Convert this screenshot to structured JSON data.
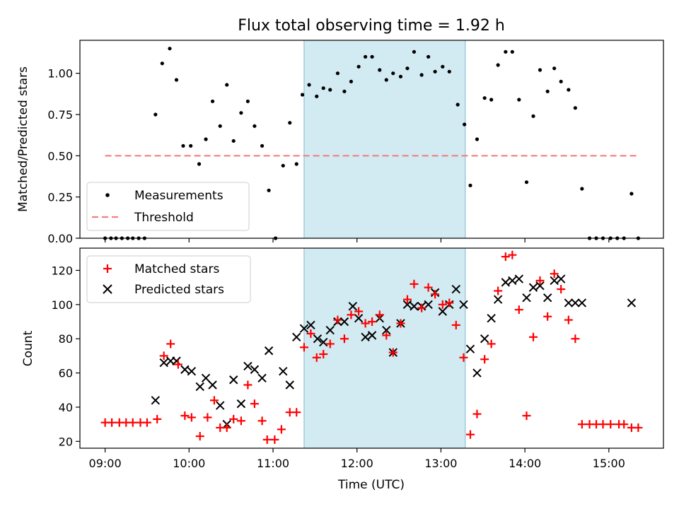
{
  "figure": {
    "title": "Flux total observing time = 1.92 h",
    "xlabel": "Time (UTC)",
    "x_ticks": [
      "09:00",
      "10:00",
      "11:00",
      "12:00",
      "13:00",
      "14:00",
      "15:00"
    ],
    "x_tick_hours": [
      9,
      10,
      11,
      12,
      13,
      14,
      15
    ],
    "xlim_hours": [
      8.7,
      15.65
    ],
    "shaded_span_hours": [
      11.37,
      13.29
    ],
    "shade_color": "#add8e6"
  },
  "chart_data": [
    {
      "type": "scatter",
      "ylabel": "Matched/Predicted stars",
      "ylim": [
        0,
        1.2
      ],
      "y_ticks": [
        "0.00",
        "0.25",
        "0.50",
        "0.75",
        "1.00"
      ],
      "y_tick_values": [
        0,
        0.25,
        0.5,
        0.75,
        1.0
      ],
      "legend_position": "lower-left",
      "grid": false,
      "series": [
        {
          "name": "Measurements",
          "marker": "dot",
          "color": "#000000",
          "points": [
            [
              9.0,
              0
            ],
            [
              9.07,
              0
            ],
            [
              9.13,
              0
            ],
            [
              9.2,
              0
            ],
            [
              9.27,
              0
            ],
            [
              9.33,
              0
            ],
            [
              9.4,
              0
            ],
            [
              9.47,
              0
            ],
            [
              9.6,
              0.75
            ],
            [
              9.68,
              1.06
            ],
            [
              9.77,
              1.15
            ],
            [
              9.85,
              0.96
            ],
            [
              9.93,
              0.56
            ],
            [
              10.02,
              0.56
            ],
            [
              10.12,
              0.45
            ],
            [
              10.2,
              0.6
            ],
            [
              10.28,
              0.83
            ],
            [
              10.37,
              0.68
            ],
            [
              10.45,
              0.93
            ],
            [
              10.53,
              0.59
            ],
            [
              10.62,
              0.76
            ],
            [
              10.7,
              0.83
            ],
            [
              10.78,
              0.68
            ],
            [
              10.87,
              0.56
            ],
            [
              10.95,
              0.29
            ],
            [
              11.03,
              0
            ],
            [
              11.12,
              0.44
            ],
            [
              11.2,
              0.7
            ],
            [
              11.28,
              0.45
            ],
            [
              11.35,
              0.87
            ],
            [
              11.43,
              0.93
            ],
            [
              11.52,
              0.86
            ],
            [
              11.6,
              0.91
            ],
            [
              11.68,
              0.9
            ],
            [
              11.77,
              1.0
            ],
            [
              11.85,
              0.89
            ],
            [
              11.93,
              0.95
            ],
            [
              12.02,
              1.04
            ],
            [
              12.1,
              1.1
            ],
            [
              12.18,
              1.1
            ],
            [
              12.27,
              1.02
            ],
            [
              12.35,
              0.96
            ],
            [
              12.43,
              1.0
            ],
            [
              12.52,
              0.98
            ],
            [
              12.6,
              1.03
            ],
            [
              12.68,
              1.13
            ],
            [
              12.77,
              0.99
            ],
            [
              12.85,
              1.1
            ],
            [
              12.93,
              1.01
            ],
            [
              13.02,
              1.04
            ],
            [
              13.1,
              1.01
            ],
            [
              13.2,
              0.81
            ],
            [
              13.28,
              0.69
            ],
            [
              13.35,
              0.32
            ],
            [
              13.43,
              0.6
            ],
            [
              13.52,
              0.85
            ],
            [
              13.6,
              0.84
            ],
            [
              13.68,
              1.05
            ],
            [
              13.77,
              1.13
            ],
            [
              13.85,
              1.13
            ],
            [
              13.93,
              0.84
            ],
            [
              14.02,
              0.34
            ],
            [
              14.1,
              0.74
            ],
            [
              14.18,
              1.02
            ],
            [
              14.27,
              0.89
            ],
            [
              14.35,
              1.03
            ],
            [
              14.43,
              0.95
            ],
            [
              14.52,
              0.9
            ],
            [
              14.6,
              0.79
            ],
            [
              14.68,
              0.3
            ],
            [
              14.77,
              0
            ],
            [
              14.85,
              0
            ],
            [
              14.93,
              0
            ],
            [
              15.02,
              0
            ],
            [
              15.1,
              0
            ],
            [
              15.18,
              0
            ],
            [
              15.27,
              0.27
            ],
            [
              15.35,
              0
            ]
          ]
        },
        {
          "name": "Threshold",
          "type": "line",
          "style": "dashed",
          "color": "#f08080",
          "points": [
            [
              9.0,
              0.5
            ],
            [
              15.35,
              0.5
            ]
          ]
        }
      ]
    },
    {
      "type": "scatter",
      "ylabel": "Count",
      "ylim": [
        16,
        133
      ],
      "y_ticks": [
        "20",
        "40",
        "60",
        "80",
        "100",
        "120"
      ],
      "y_tick_values": [
        20,
        40,
        60,
        80,
        100,
        120
      ],
      "legend_position": "top-left",
      "grid": false,
      "series": [
        {
          "name": "Matched stars",
          "marker": "plus",
          "color": "#ff0000",
          "points": [
            [
              9.0,
              31
            ],
            [
              9.08,
              31
            ],
            [
              9.17,
              31
            ],
            [
              9.25,
              31
            ],
            [
              9.33,
              31
            ],
            [
              9.42,
              31
            ],
            [
              9.5,
              31
            ],
            [
              9.62,
              33
            ],
            [
              9.7,
              70
            ],
            [
              9.78,
              77
            ],
            [
              9.87,
              65
            ],
            [
              9.95,
              35
            ],
            [
              10.03,
              34
            ],
            [
              10.13,
              23
            ],
            [
              10.22,
              34
            ],
            [
              10.3,
              44
            ],
            [
              10.37,
              28
            ],
            [
              10.45,
              28
            ],
            [
              10.53,
              33
            ],
            [
              10.62,
              32
            ],
            [
              10.7,
              53
            ],
            [
              10.78,
              42
            ],
            [
              10.87,
              32
            ],
            [
              10.93,
              21
            ],
            [
              11.02,
              21
            ],
            [
              11.1,
              27
            ],
            [
              11.2,
              37
            ],
            [
              11.28,
              37
            ],
            [
              11.37,
              75
            ],
            [
              11.45,
              83
            ],
            [
              11.52,
              69
            ],
            [
              11.6,
              71
            ],
            [
              11.68,
              77
            ],
            [
              11.77,
              91
            ],
            [
              11.85,
              80
            ],
            [
              11.93,
              94
            ],
            [
              12.02,
              96
            ],
            [
              12.1,
              89
            ],
            [
              12.18,
              90
            ],
            [
              12.27,
              94
            ],
            [
              12.35,
              82
            ],
            [
              12.43,
              72
            ],
            [
              12.52,
              89
            ],
            [
              12.6,
              103
            ],
            [
              12.68,
              112
            ],
            [
              12.77,
              98
            ],
            [
              12.85,
              110
            ],
            [
              12.93,
              106
            ],
            [
              13.02,
              100
            ],
            [
              13.1,
              101
            ],
            [
              13.18,
              88
            ],
            [
              13.27,
              69
            ],
            [
              13.35,
              24
            ],
            [
              13.43,
              36
            ],
            [
              13.52,
              68
            ],
            [
              13.6,
              77
            ],
            [
              13.68,
              108
            ],
            [
              13.77,
              128
            ],
            [
              13.85,
              129
            ],
            [
              13.93,
              97
            ],
            [
              14.02,
              35
            ],
            [
              14.1,
              81
            ],
            [
              14.18,
              114
            ],
            [
              14.27,
              93
            ],
            [
              14.35,
              118
            ],
            [
              14.43,
              109
            ],
            [
              14.52,
              91
            ],
            [
              14.6,
              80
            ],
            [
              14.68,
              30
            ],
            [
              14.77,
              30
            ],
            [
              14.85,
              30
            ],
            [
              14.93,
              30
            ],
            [
              15.02,
              30
            ],
            [
              15.12,
              30
            ],
            [
              15.18,
              30
            ],
            [
              15.27,
              28
            ],
            [
              15.35,
              28
            ]
          ]
        },
        {
          "name": "Predicted stars",
          "marker": "x",
          "color": "#000000",
          "points": [
            [
              9.6,
              44
            ],
            [
              9.7,
              66
            ],
            [
              9.78,
              67
            ],
            [
              9.85,
              67
            ],
            [
              9.95,
              62
            ],
            [
              10.03,
              61
            ],
            [
              10.13,
              52
            ],
            [
              10.2,
              57
            ],
            [
              10.28,
              53
            ],
            [
              10.37,
              41
            ],
            [
              10.45,
              30
            ],
            [
              10.53,
              56
            ],
            [
              10.62,
              42
            ],
            [
              10.7,
              64
            ],
            [
              10.78,
              62
            ],
            [
              10.87,
              57
            ],
            [
              10.95,
              73
            ],
            [
              11.12,
              61
            ],
            [
              11.2,
              53
            ],
            [
              11.28,
              81
            ],
            [
              11.37,
              86
            ],
            [
              11.45,
              88
            ],
            [
              11.53,
              80
            ],
            [
              11.6,
              78
            ],
            [
              11.68,
              85
            ],
            [
              11.77,
              90
            ],
            [
              11.85,
              90
            ],
            [
              11.95,
              99
            ],
            [
              12.02,
              92
            ],
            [
              12.1,
              81
            ],
            [
              12.18,
              82
            ],
            [
              12.27,
              92
            ],
            [
              12.35,
              85
            ],
            [
              12.43,
              72
            ],
            [
              12.52,
              89
            ],
            [
              12.6,
              100
            ],
            [
              12.68,
              99
            ],
            [
              12.77,
              99
            ],
            [
              12.85,
              100
            ],
            [
              12.93,
              107
            ],
            [
              13.02,
              96
            ],
            [
              13.1,
              100
            ],
            [
              13.18,
              109
            ],
            [
              13.27,
              100
            ],
            [
              13.35,
              74
            ],
            [
              13.43,
              60
            ],
            [
              13.52,
              80
            ],
            [
              13.6,
              92
            ],
            [
              13.68,
              103
            ],
            [
              13.77,
              113
            ],
            [
              13.85,
              114
            ],
            [
              13.93,
              115
            ],
            [
              14.02,
              104
            ],
            [
              14.1,
              110
            ],
            [
              14.18,
              111
            ],
            [
              14.27,
              104
            ],
            [
              14.35,
              114
            ],
            [
              14.43,
              115
            ],
            [
              14.52,
              101
            ],
            [
              14.6,
              101
            ],
            [
              14.68,
              101
            ],
            [
              15.27,
              101
            ]
          ]
        }
      ]
    }
  ]
}
